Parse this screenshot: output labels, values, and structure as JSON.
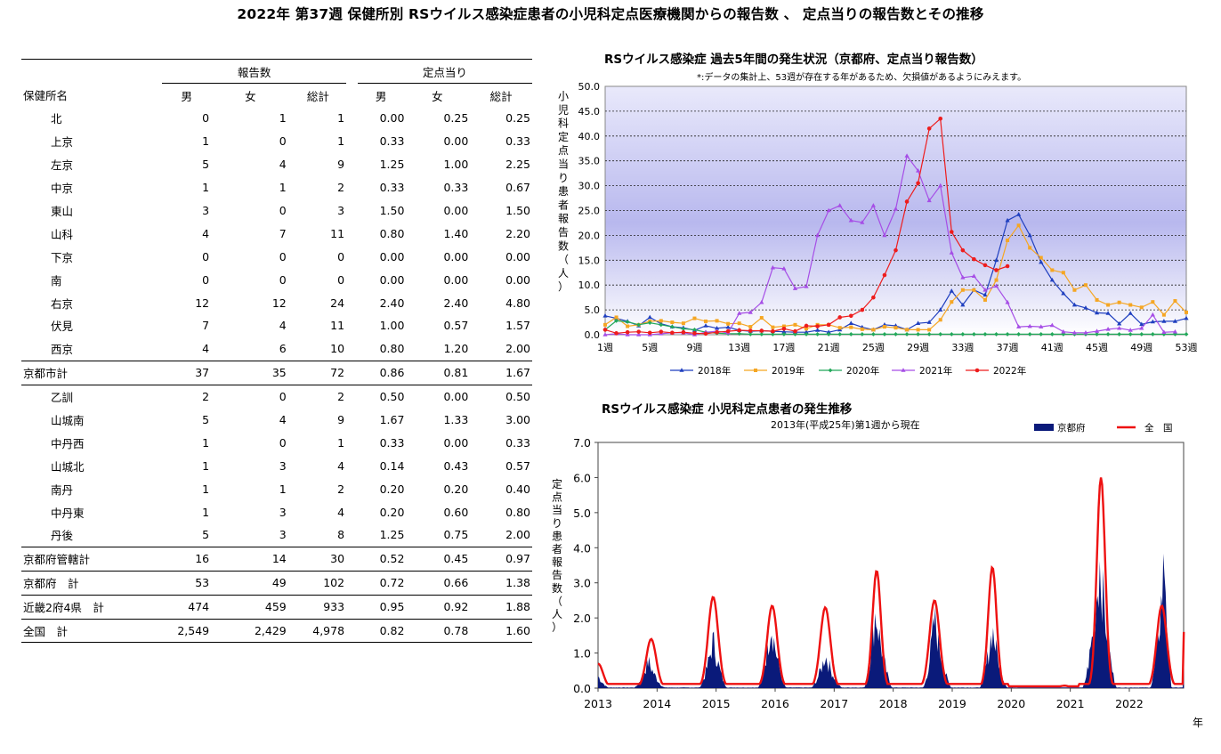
{
  "page_title": "2022年 第37週 保健所別 RSウイルス感染症患者の小児科定点医療機関からの報告数 、 定点当りの報告数とその推移",
  "table": {
    "group_headers": [
      "報告数",
      "定点当り"
    ],
    "col_headers": [
      "保健所名",
      "男",
      "女",
      "総計",
      "男",
      "女",
      "総計"
    ],
    "rows": [
      {
        "name": "北",
        "level": "sub",
        "m": "0",
        "f": "1",
        "t": "1",
        "pm": "0.00",
        "pf": "0.25",
        "pt": "0.25"
      },
      {
        "name": "上京",
        "level": "sub",
        "m": "1",
        "f": "0",
        "t": "1",
        "pm": "0.33",
        "pf": "0.00",
        "pt": "0.33"
      },
      {
        "name": "左京",
        "level": "sub",
        "m": "5",
        "f": "4",
        "t": "9",
        "pm": "1.25",
        "pf": "1.00",
        "pt": "2.25"
      },
      {
        "name": "中京",
        "level": "sub",
        "m": "1",
        "f": "1",
        "t": "2",
        "pm": "0.33",
        "pf": "0.33",
        "pt": "0.67"
      },
      {
        "name": "東山",
        "level": "sub",
        "m": "3",
        "f": "0",
        "t": "3",
        "pm": "1.50",
        "pf": "0.00",
        "pt": "1.50"
      },
      {
        "name": "山科",
        "level": "sub",
        "m": "4",
        "f": "7",
        "t": "11",
        "pm": "0.80",
        "pf": "1.40",
        "pt": "2.20"
      },
      {
        "name": "下京",
        "level": "sub",
        "m": "0",
        "f": "0",
        "t": "0",
        "pm": "0.00",
        "pf": "0.00",
        "pt": "0.00"
      },
      {
        "name": "南",
        "level": "sub",
        "m": "0",
        "f": "0",
        "t": "0",
        "pm": "0.00",
        "pf": "0.00",
        "pt": "0.00"
      },
      {
        "name": "右京",
        "level": "sub",
        "m": "12",
        "f": "12",
        "t": "24",
        "pm": "2.40",
        "pf": "2.40",
        "pt": "4.80"
      },
      {
        "name": "伏見",
        "level": "sub",
        "m": "7",
        "f": "4",
        "t": "11",
        "pm": "1.00",
        "pf": "0.57",
        "pt": "1.57"
      },
      {
        "name": "西京",
        "level": "sub",
        "m": "4",
        "f": "6",
        "t": "10",
        "pm": "0.80",
        "pf": "1.20",
        "pt": "2.00"
      },
      {
        "name": "京都市計",
        "level": "top",
        "m": "37",
        "f": "35",
        "t": "72",
        "pm": "0.86",
        "pf": "0.81",
        "pt": "1.67"
      },
      {
        "name": "乙訓",
        "level": "sub",
        "m": "2",
        "f": "0",
        "t": "2",
        "pm": "0.50",
        "pf": "0.00",
        "pt": "0.50"
      },
      {
        "name": "山城南",
        "level": "sub",
        "m": "5",
        "f": "4",
        "t": "9",
        "pm": "1.67",
        "pf": "1.33",
        "pt": "3.00"
      },
      {
        "name": "中丹西",
        "level": "sub",
        "m": "1",
        "f": "0",
        "t": "1",
        "pm": "0.33",
        "pf": "0.00",
        "pt": "0.33"
      },
      {
        "name": "山城北",
        "level": "sub",
        "m": "1",
        "f": "3",
        "t": "4",
        "pm": "0.14",
        "pf": "0.43",
        "pt": "0.57"
      },
      {
        "name": "南丹",
        "level": "sub",
        "m": "1",
        "f": "1",
        "t": "2",
        "pm": "0.20",
        "pf": "0.20",
        "pt": "0.40"
      },
      {
        "name": "中丹東",
        "level": "sub",
        "m": "1",
        "f": "3",
        "t": "4",
        "pm": "0.20",
        "pf": "0.60",
        "pt": "0.80"
      },
      {
        "name": "丹後",
        "level": "sub",
        "m": "5",
        "f": "3",
        "t": "8",
        "pm": "1.25",
        "pf": "0.75",
        "pt": "2.00"
      },
      {
        "name": "京都府管轄計",
        "level": "top",
        "m": "16",
        "f": "14",
        "t": "30",
        "pm": "0.52",
        "pf": "0.45",
        "pt": "0.97"
      },
      {
        "name": "京都府　計",
        "level": "top",
        "m": "53",
        "f": "49",
        "t": "102",
        "pm": "0.72",
        "pf": "0.66",
        "pt": "1.38"
      },
      {
        "name": "近畿2府4県　計",
        "level": "top",
        "m": "474",
        "f": "459",
        "t": "933",
        "pm": "0.95",
        "pf": "0.92",
        "pt": "1.88"
      },
      {
        "name": "全国　計",
        "level": "top",
        "m": "2,549",
        "f": "2,429",
        "t": "4,978",
        "pm": "0.82",
        "pf": "0.78",
        "pt": "1.60"
      }
    ]
  },
  "chart_data": [
    {
      "type": "line",
      "title": "RSウイルス感染症  過去5年間の発生状況（京都府、定点当り報告数）",
      "note": "*:データの集計上、53週が存在する年があるため、欠損値があるようにみえます。",
      "ylabel": "小児科定点当り患者報告数（人）",
      "ylim": [
        0,
        50
      ],
      "yticks": [
        "0.0",
        "5.0",
        "10.0",
        "15.0",
        "20.0",
        "25.0",
        "30.0",
        "35.0",
        "40.0",
        "45.0",
        "50.0"
      ],
      "xticks": [
        "1週",
        "5週",
        "9週",
        "13週",
        "17週",
        "21週",
        "25週",
        "29週",
        "33週",
        "37週",
        "41週",
        "45週",
        "49週",
        "53週"
      ],
      "grid": true,
      "legend_position": "bottom",
      "colors": {
        "2018年": "#1f3fbf",
        "2019年": "#f5a623",
        "2020年": "#22a85a",
        "2021年": "#a64ee6",
        "2022年": "#ee1c1c"
      },
      "series": [
        {
          "name": "2018年",
          "values": [
            3.8,
            3.3,
            2.7,
            1.8,
            3.5,
            2.2,
            1.6,
            1.4,
            0.9,
            1.8,
            1.3,
            1.5,
            0.9,
            0.7,
            0.8,
            0.7,
            0.6,
            0.5,
            0.5,
            0.9,
            0.5,
            1.0,
            2.3,
            1.5,
            1.0,
            2.0,
            1.8,
            1.0,
            2.3,
            2.5,
            5.0,
            8.8,
            6.0,
            9.0,
            8.0,
            15.0,
            23.0,
            24.2,
            20.0,
            14.6,
            11.0,
            8.3,
            6.0,
            5.4,
            4.4,
            4.3,
            2.2,
            4.3,
            2.1,
            2.6,
            2.7,
            2.7,
            3.3
          ]
        },
        {
          "name": "2019年",
          "values": [
            2.0,
            3.5,
            1.7,
            2.0,
            2.7,
            2.8,
            2.5,
            2.3,
            3.3,
            2.7,
            2.8,
            2.2,
            2.3,
            1.6,
            3.4,
            1.5,
            1.7,
            2.0,
            1.2,
            2.0,
            2.0,
            1.4,
            1.5,
            1.1,
            1.0,
            1.6,
            1.4,
            1.0,
            1.0,
            1.0,
            3.0,
            6.6,
            9.0,
            9.0,
            7.0,
            11.0,
            19.0,
            22.0,
            17.5,
            15.5,
            13.0,
            12.5,
            9.0,
            10.0,
            7.0,
            6.0,
            6.5,
            6.0,
            5.5,
            6.6,
            4.0,
            6.8,
            4.5
          ]
        },
        {
          "name": "2020年",
          "values": [
            1.0,
            2.8,
            2.6,
            2.0,
            2.4,
            2.0,
            1.6,
            1.2,
            1.0,
            0.5,
            0.3,
            0.2,
            0.2,
            0.1,
            0.1,
            0.1,
            0.1,
            0.1,
            0.1,
            0.1,
            0.1,
            0.1,
            0.1,
            0.1,
            0.1,
            0.1,
            0.1,
            0.1,
            0.1,
            0.1,
            0.1,
            0.1,
            0.1,
            0.1,
            0.1,
            0.1,
            0.1,
            0.1,
            0.1,
            0.1,
            0.1,
            0.1,
            0.1,
            0.1,
            0.1,
            0.1,
            0.1,
            0.1,
            0.1,
            0.1,
            0.1,
            0.1,
            0.1
          ]
        },
        {
          "name": "2021年",
          "values": [
            0.0,
            0.2,
            0.0,
            0.0,
            0.0,
            0.2,
            0.4,
            0.4,
            0.0,
            0.5,
            0.7,
            0.4,
            4.3,
            4.5,
            6.5,
            13.5,
            13.3,
            9.3,
            9.7,
            20.0,
            25.0,
            26.0,
            23.0,
            22.6,
            26.0,
            20.0,
            25.3,
            36.0,
            33.0,
            27.0,
            30.0,
            16.5,
            11.5,
            11.8,
            9.0,
            9.8,
            6.5,
            1.6,
            1.7,
            1.6,
            1.9,
            0.6,
            0.4,
            0.4,
            0.7,
            1.1,
            1.3,
            0.9,
            1.3,
            4.0,
            0.5,
            0.6,
            null
          ]
        },
        {
          "name": "2022年",
          "values": [
            1.0,
            0.3,
            0.5,
            0.6,
            0.4,
            0.6,
            0.4,
            0.5,
            0.3,
            0.2,
            0.5,
            0.7,
            0.9,
            0.8,
            0.8,
            0.7,
            1.2,
            0.7,
            1.8,
            1.7,
            2.0,
            3.5,
            3.8,
            5.0,
            7.5,
            12.0,
            17.0,
            26.8,
            30.5,
            41.5,
            43.5,
            20.7,
            17.0,
            15.2,
            14.0,
            13.0,
            13.8,
            null,
            null,
            null,
            null,
            null,
            null,
            null,
            null,
            null,
            null,
            null,
            null,
            null,
            null,
            null,
            null
          ]
        }
      ]
    },
    {
      "type": "area",
      "title": "RSウイルス感染症  小児科定点患者の発生推移",
      "subtitle": "2013年(平成25年)第1週から現在",
      "ylabel": "定点当り患者報告数（人）",
      "xlabel": "年",
      "ylim": [
        0,
        7
      ],
      "yticks": [
        "0.0",
        "1.0",
        "2.0",
        "3.0",
        "4.0",
        "5.0",
        "6.0",
        "7.0"
      ],
      "xticks": [
        "2013",
        "2014",
        "2015",
        "2016",
        "2017",
        "2018",
        "2019",
        "2020",
        "2021",
        "2022"
      ],
      "legend": [
        "京都府",
        "全　国"
      ],
      "colors": {
        "京都府": "#0a1a7a",
        "全　国": "#ee1111"
      },
      "series": [
        {
          "name": "京都府",
          "style": "filled-area",
          "peaks": [
            {
              "year": 2013.0,
              "peak": 0.4,
              "start": 2012.95,
              "end": 2013.2
            },
            {
              "year": 2013.85,
              "peak": 0.9,
              "start": 2013.6,
              "end": 2014.15
            },
            {
              "year": 2014.95,
              "peak": 1.6,
              "start": 2014.7,
              "end": 2015.2
            },
            {
              "year": 2015.93,
              "peak": 2.2,
              "start": 2015.7,
              "end": 2016.2
            },
            {
              "year": 2016.85,
              "peak": 1.1,
              "start": 2016.6,
              "end": 2017.15
            },
            {
              "year": 2017.7,
              "peak": 2.6,
              "start": 2017.5,
              "end": 2018.0
            },
            {
              "year": 2018.7,
              "peak": 2.3,
              "start": 2018.5,
              "end": 2019.0
            },
            {
              "year": 2019.68,
              "peak": 2.0,
              "start": 2019.45,
              "end": 2019.95
            },
            {
              "year": 2021.5,
              "peak": 4.2,
              "start": 2021.2,
              "end": 2021.8
            },
            {
              "year": 2022.6,
              "peak": 4.35,
              "start": 2022.35,
              "end": 2022.72
            }
          ],
          "last_value": 1.4
        },
        {
          "name": "全　国",
          "style": "line",
          "peaks": [
            {
              "year": 2013.0,
              "peak": 0.7
            },
            {
              "year": 2013.9,
              "peak": 1.4
            },
            {
              "year": 2014.95,
              "peak": 2.6
            },
            {
              "year": 2015.95,
              "peak": 2.35
            },
            {
              "year": 2016.85,
              "peak": 2.3
            },
            {
              "year": 2017.72,
              "peak": 3.35
            },
            {
              "year": 2018.7,
              "peak": 2.5
            },
            {
              "year": 2019.68,
              "peak": 3.45
            },
            {
              "year": 2020.9,
              "peak": 0.2
            },
            {
              "year": 2021.52,
              "peak": 6.0
            },
            {
              "year": 2022.55,
              "peak": 2.35
            }
          ],
          "last_value": 1.6
        }
      ]
    }
  ]
}
